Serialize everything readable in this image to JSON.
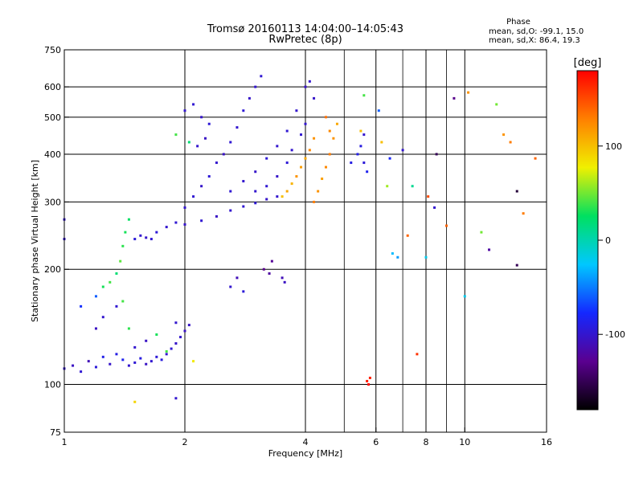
{
  "chart_data": {
    "type": "scatter",
    "title": "Tromsø 20160113 14:04:00–14:05:43",
    "subtitle": "RwPretec (8p)",
    "stats": {
      "heading": "Phase",
      "line_o": "mean, sd,O: -99.1, 15.0",
      "line_x": "mean, sd,X:  86.4, 19.3"
    },
    "xlabel": "Frequency [MHz]",
    "ylabel": "Stationary phase Virtual Height [km]",
    "x_scale": "log",
    "y_scale": "log",
    "xlim": [
      1,
      16
    ],
    "ylim": [
      75,
      750
    ],
    "x_ticks": [
      1,
      2,
      4,
      6,
      8,
      10,
      16
    ],
    "x_tick_labels": [
      "1",
      "2",
      "4",
      "6",
      "8",
      "10",
      "16"
    ],
    "x_grid": [
      2,
      4,
      6,
      8,
      10
    ],
    "x_minor_grid": [
      5,
      7,
      9
    ],
    "y_ticks": [
      75,
      100,
      200,
      300,
      400,
      500,
      600,
      750
    ],
    "y_tick_labels": [
      "75",
      "100",
      "200",
      "300",
      "400",
      "500",
      "600",
      "750"
    ],
    "y_grid": [
      100,
      200,
      300,
      400,
      500,
      600
    ],
    "grid": true,
    "colorbar": {
      "label": "[deg]",
      "min": -180,
      "max": 180,
      "ticks": [
        100,
        0,
        -100
      ],
      "tick_labels": [
        "100",
        "0",
        "-100"
      ],
      "colors": [
        "#000000",
        "#5a0090",
        "#1428ff",
        "#00c8ff",
        "#00e060",
        "#f0f000",
        "#ff8000",
        "#ff0000"
      ]
    },
    "series": [
      {
        "points": [
          [
            1.0,
            110,
            -100
          ],
          [
            1.05,
            112,
            -105
          ],
          [
            1.1,
            108,
            -98
          ],
          [
            1.15,
            115,
            -110
          ],
          [
            1.2,
            111,
            -95
          ],
          [
            1.25,
            118,
            -88
          ],
          [
            1.3,
            113,
            -102
          ],
          [
            1.35,
            120,
            -90
          ],
          [
            1.4,
            116,
            -85
          ],
          [
            1.45,
            112,
            -100
          ],
          [
            1.5,
            114,
            -97
          ],
          [
            1.55,
            117,
            -92
          ],
          [
            1.6,
            113,
            -104
          ],
          [
            1.65,
            115,
            -99
          ],
          [
            1.7,
            118,
            -96
          ],
          [
            1.75,
            116,
            -93
          ],
          [
            1.8,
            120,
            -100
          ],
          [
            1.85,
            124,
            -98
          ],
          [
            1.9,
            128,
            -102
          ],
          [
            1.95,
            133,
            -100
          ],
          [
            2.0,
            138,
            -105
          ],
          [
            2.05,
            143,
            -103
          ],
          [
            1.1,
            160,
            -75
          ],
          [
            1.2,
            170,
            -60
          ],
          [
            1.25,
            180,
            30
          ],
          [
            1.3,
            185,
            40
          ],
          [
            1.35,
            195,
            20
          ],
          [
            1.38,
            210,
            45
          ],
          [
            1.4,
            230,
            35
          ],
          [
            1.42,
            250,
            30
          ],
          [
            1.45,
            270,
            25
          ],
          [
            1.5,
            240,
            -95
          ],
          [
            1.55,
            245,
            -100
          ],
          [
            1.6,
            242,
            -102
          ],
          [
            1.65,
            240,
            -98
          ],
          [
            1.7,
            250,
            -96
          ],
          [
            1.8,
            258,
            -100
          ],
          [
            1.9,
            265,
            -98
          ],
          [
            2.0,
            262,
            -102
          ],
          [
            2.2,
            268,
            -98
          ],
          [
            2.4,
            275,
            -104
          ],
          [
            2.6,
            285,
            -100
          ],
          [
            2.8,
            292,
            -98
          ],
          [
            3.0,
            298,
            -96
          ],
          [
            3.2,
            305,
            -102
          ],
          [
            3.4,
            310,
            -100
          ],
          [
            2.0,
            290,
            -100
          ],
          [
            2.1,
            310,
            -98
          ],
          [
            2.2,
            330,
            -102
          ],
          [
            2.3,
            350,
            -96
          ],
          [
            2.4,
            380,
            -100
          ],
          [
            2.5,
            400,
            -104
          ],
          [
            2.6,
            430,
            -98
          ],
          [
            2.7,
            470,
            -100
          ],
          [
            2.8,
            520,
            -96
          ],
          [
            2.9,
            560,
            -102
          ],
          [
            3.0,
            600,
            -100
          ],
          [
            3.1,
            640,
            -98
          ],
          [
            2.6,
            320,
            -98
          ],
          [
            2.8,
            340,
            -100
          ],
          [
            3.0,
            360,
            -102
          ],
          [
            3.2,
            390,
            -96
          ],
          [
            3.4,
            420,
            -100
          ],
          [
            3.6,
            460,
            -98
          ],
          [
            3.8,
            520,
            -100
          ],
          [
            4.0,
            600,
            -104
          ],
          [
            4.1,
            620,
            -100
          ],
          [
            3.0,
            320,
            -100
          ],
          [
            3.2,
            330,
            -98
          ],
          [
            3.4,
            350,
            -102
          ],
          [
            3.6,
            380,
            -96
          ],
          [
            3.7,
            410,
            -100
          ],
          [
            3.9,
            450,
            -98
          ],
          [
            4.0,
            480,
            -100
          ],
          [
            4.2,
            560,
            -102
          ],
          [
            3.5,
            310,
            100
          ],
          [
            3.6,
            320,
            110
          ],
          [
            3.7,
            335,
            105
          ],
          [
            3.8,
            350,
            120
          ],
          [
            3.9,
            370,
            115
          ],
          [
            4.0,
            390,
            110
          ],
          [
            4.1,
            410,
            125
          ],
          [
            4.2,
            300,
            130
          ],
          [
            4.3,
            320,
            120
          ],
          [
            4.4,
            345,
            115
          ],
          [
            4.5,
            370,
            125
          ],
          [
            4.6,
            400,
            130
          ],
          [
            4.7,
            440,
            120
          ],
          [
            4.8,
            480,
            110
          ],
          [
            4.5,
            500,
            135
          ],
          [
            4.2,
            440,
            120
          ],
          [
            4.6,
            460,
            125
          ],
          [
            5.2,
            380,
            -90
          ],
          [
            5.4,
            400,
            -88
          ],
          [
            5.5,
            420,
            -92
          ],
          [
            5.6,
            380,
            -95
          ],
          [
            5.7,
            360,
            -85
          ],
          [
            5.5,
            460,
            100
          ],
          [
            5.6,
            570,
            40
          ],
          [
            5.7,
            102,
            170
          ],
          [
            5.75,
            100,
            175
          ],
          [
            5.8,
            104,
            168
          ],
          [
            5.6,
            450,
            -100
          ],
          [
            2.0,
            520,
            -100
          ],
          [
            2.1,
            540,
            -98
          ],
          [
            2.2,
            500,
            -102
          ],
          [
            2.3,
            480,
            -96
          ],
          [
            2.15,
            420,
            -100
          ],
          [
            2.25,
            440,
            -104
          ],
          [
            1.9,
            450,
            40
          ],
          [
            2.05,
            430,
            20
          ],
          [
            3.15,
            200,
            -130
          ],
          [
            3.25,
            195,
            -120
          ],
          [
            3.3,
            210,
            -125
          ],
          [
            3.5,
            190,
            -110
          ],
          [
            3.55,
            185,
            -105
          ],
          [
            2.6,
            180,
            -100
          ],
          [
            2.8,
            175,
            -95
          ],
          [
            2.7,
            190,
            -110
          ],
          [
            1.2,
            140,
            -105
          ],
          [
            1.25,
            150,
            -100
          ],
          [
            1.35,
            160,
            -98
          ],
          [
            1.4,
            165,
            40
          ],
          [
            1.45,
            140,
            35
          ],
          [
            1.5,
            125,
            -100
          ],
          [
            1.6,
            130,
            -104
          ],
          [
            1.7,
            135,
            30
          ],
          [
            1.8,
            122,
            40
          ],
          [
            1.9,
            145,
            -100
          ],
          [
            1.5,
            90,
            90
          ],
          [
            1.9,
            92,
            -100
          ],
          [
            2.1,
            115,
            80
          ],
          [
            1.0,
            270,
            -100
          ],
          [
            1.0,
            240,
            -100
          ],
          [
            6.4,
            330,
            60
          ],
          [
            6.5,
            390,
            -80
          ],
          [
            6.6,
            220,
            -30
          ],
          [
            6.8,
            215,
            -40
          ],
          [
            7.0,
            410,
            -100
          ],
          [
            7.2,
            245,
            140
          ],
          [
            7.4,
            330,
            10
          ],
          [
            7.6,
            120,
            160
          ],
          [
            8.0,
            215,
            -20
          ],
          [
            8.1,
            310,
            150
          ],
          [
            8.5,
            400,
            -150
          ],
          [
            9.0,
            260,
            140
          ],
          [
            9.4,
            560,
            -130
          ],
          [
            10.0,
            170,
            -20
          ],
          [
            10.2,
            580,
            120
          ],
          [
            11.0,
            250,
            50
          ],
          [
            11.5,
            225,
            -120
          ],
          [
            12.0,
            540,
            50
          ],
          [
            12.5,
            450,
            120
          ],
          [
            13.0,
            430,
            130
          ],
          [
            13.5,
            320,
            -160
          ],
          [
            14.0,
            280,
            130
          ],
          [
            13.5,
            205,
            -150
          ],
          [
            15.0,
            390,
            140
          ],
          [
            6.2,
            430,
            100
          ],
          [
            6.1,
            520,
            -60
          ],
          [
            8.4,
            290,
            -100
          ]
        ]
      }
    ]
  }
}
